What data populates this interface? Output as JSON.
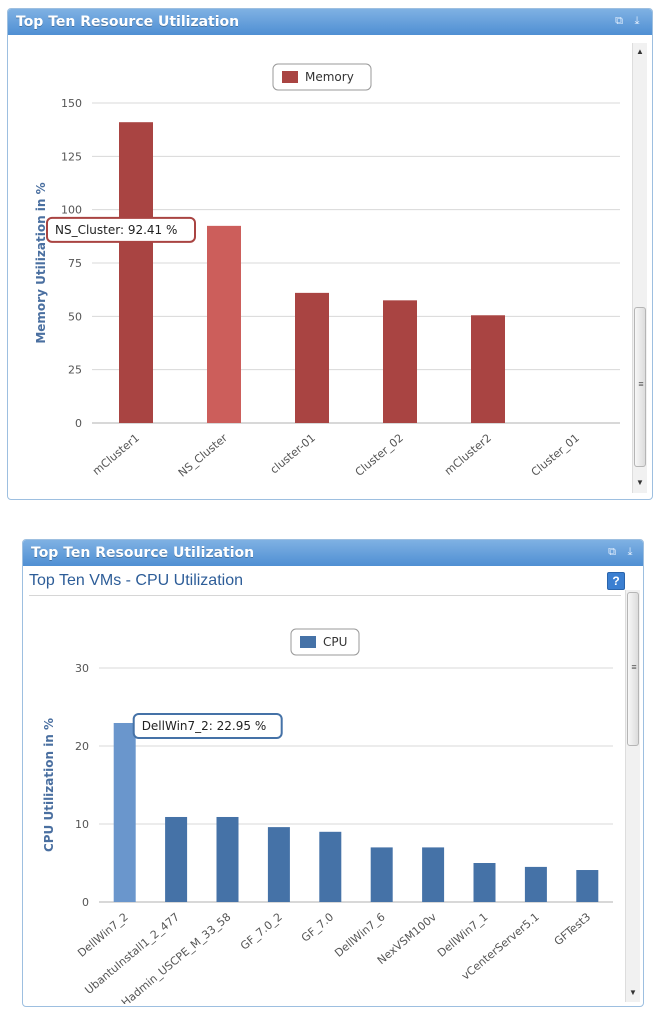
{
  "widget1": {
    "title": "Top Ten Resource Utilization",
    "chart_data": {
      "type": "bar",
      "categories": [
        "mCluster1",
        "NS_Cluster",
        "cluster-01",
        "Cluster_02",
        "mCluster2",
        "Cluster_01"
      ],
      "series": [
        {
          "name": "Memory",
          "values": [
            141,
            92.41,
            61,
            57.5,
            50.5,
            0
          ]
        }
      ],
      "ylabel": "Memory Utilization in %",
      "ylim": [
        0,
        150
      ],
      "yticks": [
        0,
        25,
        50,
        75,
        100,
        125,
        150
      ],
      "grid": true,
      "legend": "top-center",
      "highlight_index": 1,
      "tooltip": "NS_Cluster: 92.41 %",
      "colors": {
        "bar": "#a94442",
        "highlight": "#cc5e5b",
        "tooltip_border": "#a94442"
      }
    }
  },
  "widget2": {
    "title": "Top Ten Resource Utilization",
    "subtitle": "Top Ten VMs - CPU Utilization",
    "help_label": "?",
    "chart_data": {
      "type": "bar",
      "categories": [
        "DellWin7_2",
        "UbantuInstall1_2_477",
        "Hadmin_USCPE_M_33_58",
        "GF_7.0_2",
        "GF_7.0",
        "DellWin7_6",
        "NexVSM100v",
        "DellWin7_1",
        "vCenterServer5.1",
        "GFTest3"
      ],
      "series": [
        {
          "name": "CPU",
          "values": [
            22.95,
            10.9,
            10.9,
            9.6,
            9.0,
            7.0,
            7.0,
            5.0,
            4.5,
            4.1
          ]
        }
      ],
      "ylabel": "CPU Utilization in %",
      "ylim": [
        0,
        30
      ],
      "yticks": [
        0,
        10,
        20,
        30
      ],
      "grid": true,
      "legend": "top-center",
      "highlight_index": 0,
      "tooltip": "DellWin7_2: 22.95 %",
      "colors": {
        "bar": "#4572a7",
        "highlight": "#6a96cc",
        "tooltip_border": "#4572a7"
      }
    }
  }
}
